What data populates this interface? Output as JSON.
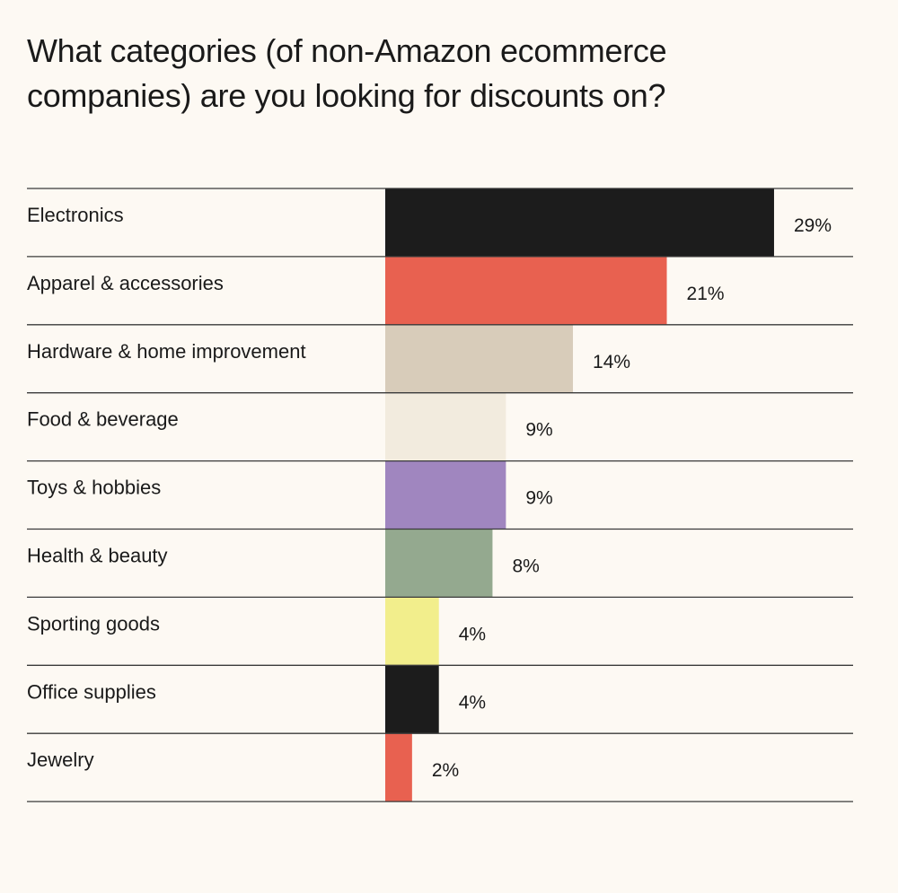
{
  "chart_data": {
    "type": "bar",
    "orientation": "horizontal",
    "title": "What categories (of non-Amazon ecommerce companies) are you looking for discounts on?",
    "categories": [
      "Electronics",
      "Apparel & accessories",
      "Hardware & home improvement",
      "Food & beverage",
      "Toys & hobbies",
      "Health & beauty",
      "Sporting goods",
      "Office supplies",
      "Jewelry"
    ],
    "values": [
      29,
      21,
      14,
      9,
      9,
      8,
      4,
      4,
      2
    ],
    "value_labels": [
      "29%",
      "21%",
      "14%",
      "9%",
      "9%",
      "8%",
      "4%",
      "4%",
      "2%"
    ],
    "colors": [
      "#1c1c1c",
      "#e86150",
      "#d8ccba",
      "#f2ebde",
      "#a086bf",
      "#94a98f",
      "#f2ee8c",
      "#1c1c1c",
      "#e86150"
    ],
    "unit": "%",
    "grid": false,
    "legend": "none"
  }
}
